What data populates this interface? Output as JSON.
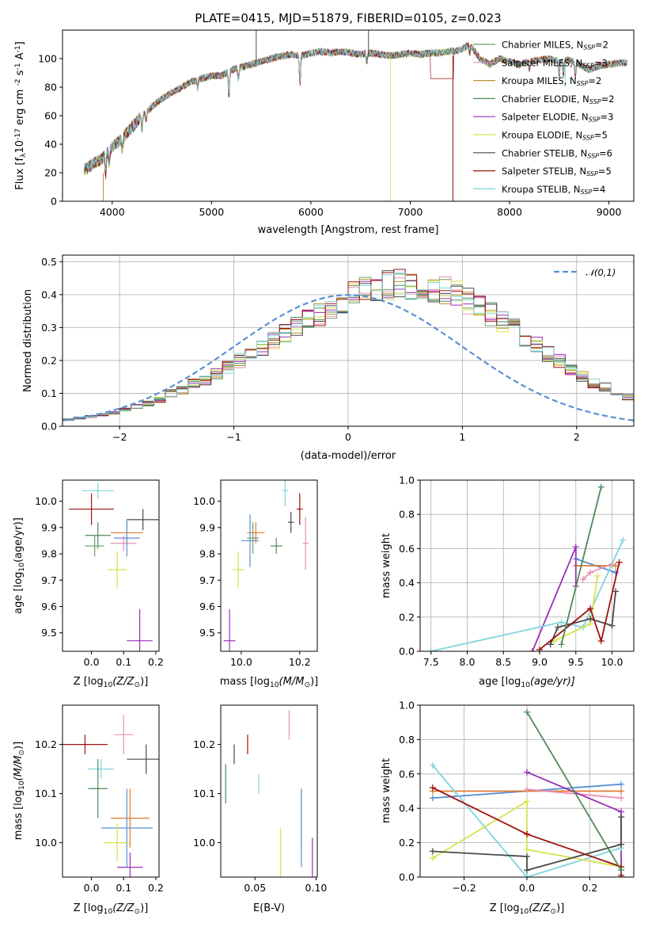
{
  "figure": {
    "title": "PLATE=0415, MJD=51879, FIBERID=0105, z=0.023"
  },
  "models": [
    {
      "name": "Chabrier MILES",
      "nssp": "2",
      "color": "#6b9e6b"
    },
    {
      "name": "Salpeter MILES",
      "nssp": "3",
      "color": "#e88fb0"
    },
    {
      "name": "Kroupa MILES",
      "nssp": "2",
      "color": "#b8952a"
    },
    {
      "name": "Chabrier ELODIE",
      "nssp": "2",
      "color": "#4f8a5a"
    },
    {
      "name": "Salpeter ELODIE",
      "nssp": "3",
      "color": "#9a30b8"
    },
    {
      "name": "Kroupa ELODIE",
      "nssp": "5",
      "color": "#d7e350"
    },
    {
      "name": "Chabrier STELIB",
      "nssp": "6",
      "color": "#4a4a4a"
    },
    {
      "name": "Salpeter STELIB",
      "nssp": "5",
      "color": "#a01010"
    },
    {
      "name": "Kroupa STELIB",
      "nssp": "4",
      "color": "#7fd6dc"
    }
  ],
  "chart_data": [
    {
      "id": "spectrum",
      "type": "line",
      "xlabel": "wavelength [Angstrom, rest frame]",
      "ylabel": "Flux [f",
      "ylabel_sub": "λ",
      "ylabel_rest": "10",
      "ylabel_exp": "-17",
      "ylabel_units": "erg cm",
      "ylabel_units_exp": "-2",
      "ylabel_units2": "s",
      "ylabel_units2_exp": "-1",
      "ylabel_units3": "A",
      "ylabel_units3_exp": "-1",
      "ylabel_close": "]",
      "xlim": [
        3500,
        9250
      ],
      "ylim": [
        0,
        120
      ],
      "xticks": [
        4000,
        5000,
        6000,
        7000,
        8000,
        9000
      ],
      "yticks": [
        0,
        20,
        40,
        60,
        80,
        100
      ],
      "legend_position": "upper-right",
      "legend_sub": "SSP",
      "spectrum_anchor": {
        "x": [
          3720,
          3800,
          3900,
          4000,
          4100,
          4200,
          4300,
          4400,
          4500,
          4600,
          4700,
          4800,
          4900,
          5000,
          5100,
          5200,
          5300,
          5400,
          5500,
          5600,
          5700,
          5800,
          5900,
          6000,
          6100,
          6200,
          6300,
          6400,
          6500,
          6600,
          6700,
          6800,
          6900,
          7000,
          7100,
          7200,
          7300,
          7400,
          7500,
          7600,
          7700,
          7800,
          7900,
          8000,
          8100,
          8200,
          8300,
          8400,
          8500,
          8600,
          8700,
          8800,
          8900,
          9000,
          9100,
          9180
        ],
        "y": [
          22,
          26,
          30,
          38,
          44,
          52,
          60,
          66,
          72,
          76,
          80,
          84,
          86,
          88,
          88,
          92,
          94,
          96,
          98,
          100,
          102,
          103,
          102,
          104,
          105,
          104,
          105,
          104,
          103,
          104,
          103,
          102,
          103,
          104,
          103,
          104,
          104,
          105,
          106,
          110,
          100,
          96,
          100,
          98,
          96,
          98,
          99,
          100,
          98,
          99,
          96,
          92,
          95,
          96,
          97,
          97
        ]
      },
      "absorption_dips": [
        {
          "x": 3934,
          "depth": 14
        },
        {
          "x": 3969,
          "depth": 10
        },
        {
          "x": 4102,
          "depth": 8
        },
        {
          "x": 4300,
          "depth": 10
        },
        {
          "x": 4340,
          "depth": 6
        },
        {
          "x": 4861,
          "depth": 6
        },
        {
          "x": 5175,
          "depth": 18
        },
        {
          "x": 5270,
          "depth": 8
        },
        {
          "x": 5890,
          "depth": 20
        },
        {
          "x": 6563,
          "depth": 6
        },
        {
          "x": 7600,
          "depth": 6
        },
        {
          "x": 8200,
          "depth": 6
        },
        {
          "x": 8500,
          "depth": 10
        },
        {
          "x": 8542,
          "depth": 10
        },
        {
          "x": 8662,
          "depth": 10
        }
      ],
      "spikes": [
        {
          "x": 3910,
          "model": 2,
          "y0": 0,
          "y1": 20
        },
        {
          "x": 5450,
          "model": 6,
          "y0": 95,
          "y1": 120
        },
        {
          "x": 6580,
          "model": 6,
          "y0": 104,
          "y1": 120
        },
        {
          "x": 6800,
          "model": 5,
          "y0": 0,
          "y1": 100
        },
        {
          "x": 7430,
          "model": 7,
          "y0": 0,
          "y1": 102
        },
        {
          "x": 8560,
          "model": 8,
          "y0": 80,
          "y1": 98
        }
      ],
      "mask_region": {
        "x": [
          7200,
          7440
        ],
        "y": 86
      }
    },
    {
      "id": "residuals",
      "type": "step-histogram",
      "xlabel": "(data-model)/error",
      "ylabel": "Normed distribution",
      "xlim": [
        -2.5,
        2.5
      ],
      "ylim": [
        0,
        0.52
      ],
      "xticks": [
        -2,
        -1,
        0,
        1,
        2
      ],
      "yticks": [
        0,
        0.1,
        0.2,
        0.3,
        0.4,
        0.5
      ],
      "grid": true,
      "legend_position": "upper-right",
      "gaussian_label": "𝒩(0,1)",
      "gaussian_color": "#5b8fd6",
      "bin_width": 0.1,
      "bin_start": -2.5,
      "base_distribution": [
        0.02,
        0.025,
        0.03,
        0.035,
        0.04,
        0.05,
        0.06,
        0.07,
        0.08,
        0.1,
        0.11,
        0.13,
        0.14,
        0.16,
        0.18,
        0.2,
        0.22,
        0.24,
        0.26,
        0.28,
        0.3,
        0.32,
        0.34,
        0.36,
        0.38,
        0.4,
        0.41,
        0.42,
        0.43,
        0.43,
        0.42,
        0.43,
        0.42,
        0.41,
        0.4,
        0.38,
        0.36,
        0.34,
        0.32,
        0.3,
        0.27,
        0.25,
        0.22,
        0.2,
        0.17,
        0.15,
        0.13,
        0.12,
        0.1,
        0.09,
        0.075,
        0.06,
        0.05,
        0.045,
        0.04,
        0.035,
        0.03,
        0.03,
        0.025,
        0.025
      ]
    },
    {
      "id": "age-vs-z",
      "type": "errorbar",
      "xlabel": "Z [log",
      "xlabel_sub": "10",
      "xlabel_rest": "(Z/Z",
      "xlabel_sub2": "⊙",
      "xlabel_close": ")]",
      "ylabel": "age  [log",
      "ylabel_sub": "10",
      "ylabel_rest": "(age/yr)]",
      "xlim": [
        -0.09,
        0.21
      ],
      "ylim": [
        9.43,
        10.08
      ],
      "xticks": [
        0.0,
        0.1,
        0.2
      ],
      "yticks": [
        9.5,
        9.6,
        9.7,
        9.8,
        9.9,
        10.0
      ],
      "points": [
        {
          "model": 8,
          "x": 0.02,
          "y": 10.04,
          "xerr": 0.05,
          "yerr": 0.03
        },
        {
          "model": 7,
          "x": 0.0,
          "y": 9.97,
          "xerr": 0.07,
          "yerr": 0.06
        },
        {
          "model": 6,
          "x": 0.16,
          "y": 9.93,
          "xerr": 0.05,
          "yerr": 0.04
        },
        {
          "model": 3,
          "x": 0.02,
          "y": 9.87,
          "xerr": 0.04,
          "yerr": 0.05
        },
        {
          "model": 2,
          "x": 0.11,
          "y": 9.88,
          "xerr": 0.05,
          "yerr": 0.04
        },
        {
          "model": 1,
          "x": 0.1,
          "y": 9.84,
          "xerr": 0.04,
          "yerr": 0.03
        },
        {
          "model": 9,
          "x": 0.11,
          "y": 9.86,
          "xerr": 0.04,
          "yerr": 0.07
        },
        {
          "model": 0,
          "x": 0.01,
          "y": 9.83,
          "xerr": 0.03,
          "yerr": 0.04
        },
        {
          "model": 5,
          "x": 0.08,
          "y": 9.74,
          "xerr": 0.03,
          "yerr": 0.07
        },
        {
          "model": 4,
          "x": 0.15,
          "y": 9.47,
          "xerr": 0.04,
          "yerr": 0.12
        }
      ]
    },
    {
      "id": "age-vs-mass",
      "type": "errorbar",
      "xlabel": "mass [log",
      "xlabel_sub": "10",
      "xlabel_rest": "(M/M",
      "xlabel_sub2": "⊙",
      "xlabel_close": ")]",
      "xlim": [
        9.93,
        10.26
      ],
      "ylim": [
        9.43,
        10.08
      ],
      "xticks": [
        10.0,
        10.2
      ],
      "yticks": [
        9.5,
        9.6,
        9.7,
        9.8,
        9.9,
        10.0
      ],
      "points": [
        {
          "model": 8,
          "x": 10.15,
          "y": 10.04,
          "xerr": 0.01,
          "yerr": 0.06
        },
        {
          "model": 7,
          "x": 10.2,
          "y": 9.97,
          "xerr": 0.01,
          "yerr": 0.06
        },
        {
          "model": 6,
          "x": 10.17,
          "y": 9.92,
          "xerr": 0.01,
          "yerr": 0.04
        },
        {
          "model": 3,
          "x": 10.12,
          "y": 9.83,
          "xerr": 0.02,
          "yerr": 0.03
        },
        {
          "model": 2,
          "x": 10.05,
          "y": 9.88,
          "xerr": 0.03,
          "yerr": 0.04
        },
        {
          "model": 1,
          "x": 10.22,
          "y": 9.84,
          "xerr": 0.01,
          "yerr": 0.1
        },
        {
          "model": 9,
          "x": 10.03,
          "y": 9.85,
          "xerr": 0.03,
          "yerr": 0.1
        },
        {
          "model": 0,
          "x": 10.04,
          "y": 9.86,
          "xerr": 0.02,
          "yerr": 0.06
        },
        {
          "model": 5,
          "x": 9.99,
          "y": 9.74,
          "xerr": 0.02,
          "yerr": 0.07
        },
        {
          "model": 4,
          "x": 9.96,
          "y": 9.47,
          "xerr": 0.02,
          "yerr": 0.12
        }
      ]
    },
    {
      "id": "weight-vs-age",
      "type": "line",
      "xlabel": "age  [log",
      "xlabel_sub": "10",
      "xlabel_rest": "(age/yr)]",
      "ylabel": "mass weight",
      "xlim": [
        7.35,
        10.3
      ],
      "ylim": [
        0,
        1.0
      ],
      "xticks": [
        7.5,
        8.0,
        8.5,
        9.0,
        9.5,
        10.0
      ],
      "yticks": [
        0.0,
        0.2,
        0.4,
        0.6,
        0.8,
        1.0
      ],
      "grid": true,
      "series": [
        {
          "model": 9,
          "x": [
            9.5,
            10.05
          ],
          "y": [
            0.54,
            0.46
          ]
        },
        {
          "model": 2,
          "x": [
            9.5,
            10.05
          ],
          "y": [
            0.5,
            0.5
          ]
        },
        {
          "model": 1,
          "x": [
            9.6,
            9.7,
            10.0
          ],
          "y": [
            0.42,
            0.46,
            0.51
          ]
        },
        {
          "model": 4,
          "x": [
            8.9,
            9.5,
            9.5
          ],
          "y": [
            0.0,
            0.61,
            0.38
          ]
        },
        {
          "model": 8,
          "x": [
            7.5,
            9.3,
            9.6,
            10.15
          ],
          "y": [
            0.0,
            0.17,
            0.14,
            0.65
          ]
        },
        {
          "model": 5,
          "x": [
            9.2,
            9.7,
            9.8
          ],
          "y": [
            0.06,
            0.16,
            0.44
          ]
        },
        {
          "model": 6,
          "x": [
            9.15,
            9.25,
            9.7,
            10.0,
            10.05
          ],
          "y": [
            0.04,
            0.14,
            0.19,
            0.15,
            0.35
          ]
        },
        {
          "model": 7,
          "x": [
            9.0,
            9.7,
            9.85,
            10.1
          ],
          "y": [
            0.01,
            0.25,
            0.06,
            0.52
          ]
        },
        {
          "model": 3,
          "x": [
            9.3,
            9.85
          ],
          "y": [
            0.04,
            0.96
          ]
        }
      ]
    },
    {
      "id": "mass-vs-z",
      "type": "errorbar",
      "xlabel": "Z [log",
      "xlabel_sub": "10",
      "xlabel_rest": "(Z/Z",
      "xlabel_sub2": "⊙",
      "xlabel_close": ")]",
      "ylabel": "mass [log",
      "ylabel_sub": "10",
      "ylabel_rest": "(M/M",
      "ylabel_sub2": "⊙",
      "ylabel_close": ")]",
      "xlim": [
        -0.09,
        0.21
      ],
      "ylim": [
        9.93,
        10.28
      ],
      "xticks": [
        0.0,
        0.1,
        0.2
      ],
      "yticks": [
        10.0,
        10.1,
        10.2
      ],
      "points": [
        {
          "model": 1,
          "x": 0.1,
          "y": 10.22,
          "xerr": 0.03,
          "yerr": 0.04
        },
        {
          "model": 7,
          "x": -0.02,
          "y": 10.2,
          "xerr": 0.07,
          "yerr": 0.02
        },
        {
          "model": 6,
          "x": 0.17,
          "y": 10.17,
          "xerr": 0.06,
          "yerr": 0.03
        },
        {
          "model": 8,
          "x": 0.03,
          "y": 10.15,
          "xerr": 0.04,
          "yerr": 0.02
        },
        {
          "model": 3,
          "x": 0.02,
          "y": 10.11,
          "xerr": 0.03,
          "yerr": 0.06
        },
        {
          "model": 2,
          "x": 0.12,
          "y": 10.05,
          "xerr": 0.06,
          "yerr": 0.06
        },
        {
          "model": 9,
          "x": 0.11,
          "y": 10.03,
          "xerr": 0.08,
          "yerr": 0.08
        },
        {
          "model": 5,
          "x": 0.08,
          "y": 10.0,
          "xerr": 0.04,
          "yerr": 0.04
        },
        {
          "model": 4,
          "x": 0.12,
          "y": 9.95,
          "xerr": 0.04,
          "yerr": 0.03
        }
      ]
    },
    {
      "id": "mass-vs-ebv",
      "type": "errorbar",
      "xlabel": "E(B-V)",
      "xlim": [
        0.022,
        0.101
      ],
      "ylim": [
        9.93,
        10.28
      ],
      "xticks": [
        0.05,
        0.1
      ],
      "yticks": [
        10.0,
        10.1,
        10.2
      ],
      "points": [
        {
          "model": 1,
          "x": 0.078,
          "y": 10.24,
          "xerr": 0.0,
          "yerr": 0.03
        },
        {
          "model": 7,
          "x": 0.044,
          "y": 10.2,
          "xerr": 0.0,
          "yerr": 0.02
        },
        {
          "model": 6,
          "x": 0.033,
          "y": 10.18,
          "xerr": 0.0,
          "yerr": 0.02
        },
        {
          "model": 3,
          "x": 0.026,
          "y": 10.12,
          "xerr": 0.0,
          "yerr": 0.04
        },
        {
          "model": 8,
          "x": 0.053,
          "y": 10.12,
          "xerr": 0.0,
          "yerr": 0.02
        },
        {
          "model": 2,
          "x": 0.088,
          "y": 10.05,
          "xerr": 0.0,
          "yerr": 0.06
        },
        {
          "model": 9,
          "x": 0.088,
          "y": 10.03,
          "xerr": 0.0,
          "yerr": 0.08
        },
        {
          "model": 5,
          "x": 0.071,
          "y": 9.98,
          "xerr": 0.0,
          "yerr": 0.05
        },
        {
          "model": 4,
          "x": 0.097,
          "y": 9.97,
          "xerr": 0.0,
          "yerr": 0.04
        }
      ]
    },
    {
      "id": "weight-vs-z",
      "type": "line",
      "xlabel": "Z [log",
      "xlabel_sub": "10",
      "xlabel_rest": "(Z/Z",
      "xlabel_sub2": "⊙",
      "xlabel_close": ")]",
      "ylabel": "mass weight",
      "xlim": [
        -0.34,
        0.34
      ],
      "ylim": [
        0,
        1.0
      ],
      "xticks": [
        -0.2,
        0.0,
        0.2
      ],
      "yticks": [
        0.0,
        0.2,
        0.4,
        0.6,
        0.8,
        1.0
      ],
      "grid": true,
      "series": [
        {
          "model": 9,
          "x": [
            -0.3,
            0.3
          ],
          "y": [
            0.46,
            0.54
          ]
        },
        {
          "model": 2,
          "x": [
            -0.3,
            0.3
          ],
          "y": [
            0.5,
            0.5
          ]
        },
        {
          "model": 1,
          "x": [
            0.0,
            0.3
          ],
          "y": [
            0.51,
            0.46
          ]
        },
        {
          "model": 4,
          "x": [
            0.0,
            0.3,
            0.3
          ],
          "y": [
            0.61,
            0.38,
            0.0
          ]
        },
        {
          "model": 8,
          "x": [
            -0.3,
            0.0,
            0.3
          ],
          "y": [
            0.65,
            0.0,
            0.17
          ]
        },
        {
          "model": 5,
          "x": [
            -0.3,
            0.0,
            0.0,
            0.3
          ],
          "y": [
            0.11,
            0.44,
            0.16,
            0.06
          ]
        },
        {
          "model": 6,
          "x": [
            -0.3,
            0.0,
            0.0,
            0.3,
            0.3
          ],
          "y": [
            0.15,
            0.12,
            0.04,
            0.19,
            0.35
          ]
        },
        {
          "model": 7,
          "x": [
            -0.3,
            0.0,
            0.3,
            0.3
          ],
          "y": [
            0.52,
            0.25,
            0.06,
            0.01
          ]
        },
        {
          "model": 3,
          "x": [
            0.0,
            0.3
          ],
          "y": [
            0.96,
            0.04
          ]
        }
      ]
    }
  ]
}
